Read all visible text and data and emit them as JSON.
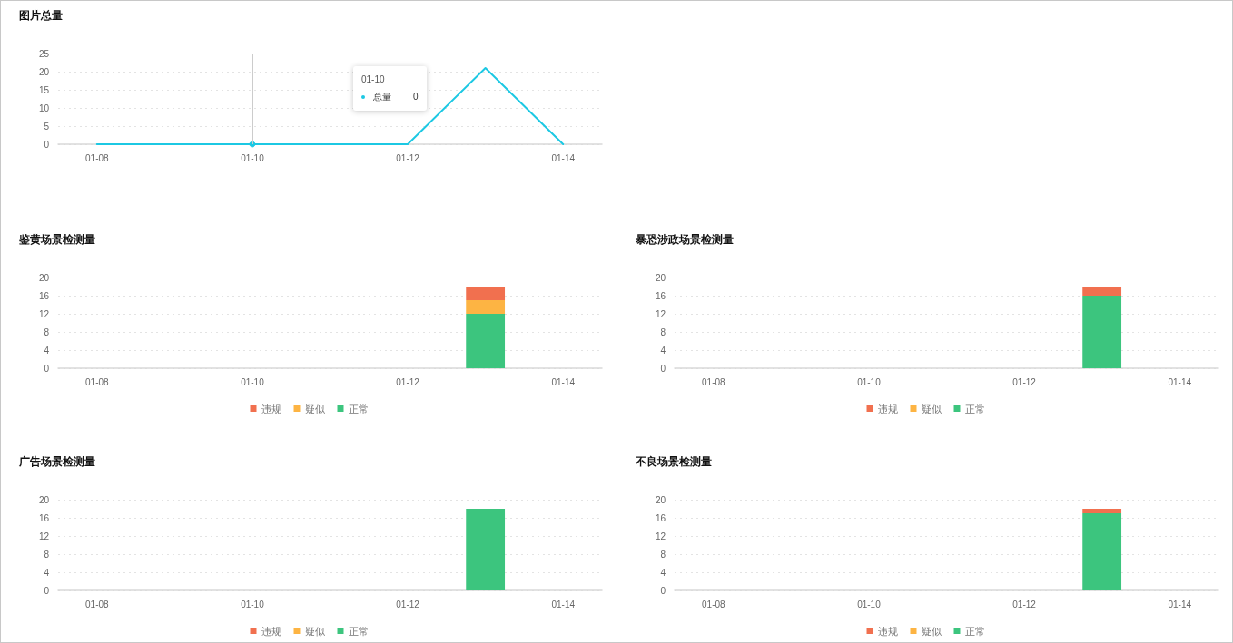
{
  "chart_data": [
    {
      "type": "line",
      "title": "图片总量",
      "categories": [
        "01-08",
        null,
        "01-10",
        null,
        "01-12",
        null,
        "01-14"
      ],
      "series": [
        {
          "name": "总量",
          "color": "#1cc8e3",
          "values": [
            0,
            0,
            0,
            0,
            0,
            21,
            0
          ]
        }
      ],
      "ylim": [
        0,
        25
      ],
      "yticks": [
        0,
        5,
        10,
        15,
        20,
        25
      ],
      "grid": "y",
      "marker": "none",
      "ref_lines": [
        {
          "axis": "x",
          "value": "01-10",
          "color": "#cccccc"
        }
      ],
      "annotations": [
        "01-10",
        "0"
      ]
    },
    {
      "type": "bar",
      "stacked": true,
      "title": "鉴黄场景检测量",
      "categories": [
        "01-08",
        null,
        "01-10",
        null,
        "01-12",
        null,
        "01-14"
      ],
      "series": [
        {
          "name": "正常",
          "color": "#3cc57e",
          "values": [
            0,
            0,
            0,
            0,
            0,
            12,
            0
          ]
        },
        {
          "name": "疑似",
          "color": "#fdb443",
          "values": [
            0,
            0,
            0,
            0,
            0,
            3,
            0
          ]
        },
        {
          "name": "违规",
          "color": "#f1704f",
          "values": [
            0,
            0,
            0,
            0,
            0,
            3,
            0
          ]
        }
      ],
      "ylim": [
        0,
        20
      ],
      "yticks": [
        0,
        4,
        8,
        12,
        16,
        20
      ],
      "grid": "y",
      "legend": "bottom"
    },
    {
      "type": "bar",
      "stacked": true,
      "title": "暴恐涉政场景检测量",
      "categories": [
        "01-08",
        null,
        "01-10",
        null,
        "01-12",
        null,
        "01-14"
      ],
      "series": [
        {
          "name": "正常",
          "color": "#3cc57e",
          "values": [
            0,
            0,
            0,
            0,
            0,
            16,
            0
          ]
        },
        {
          "name": "疑似",
          "color": "#fdb443",
          "values": [
            0,
            0,
            0,
            0,
            0,
            0,
            0
          ]
        },
        {
          "name": "违规",
          "color": "#f1704f",
          "values": [
            0,
            0,
            0,
            0,
            0,
            2,
            0
          ]
        }
      ],
      "ylim": [
        0,
        20
      ],
      "yticks": [
        0,
        4,
        8,
        12,
        16,
        20
      ],
      "grid": "y",
      "legend": "bottom"
    },
    {
      "type": "bar",
      "stacked": true,
      "title": "广告场景检测量",
      "categories": [
        "01-08",
        null,
        "01-10",
        null,
        "01-12",
        null,
        "01-14"
      ],
      "series": [
        {
          "name": "正常",
          "color": "#3cc57e",
          "values": [
            0,
            0,
            0,
            0,
            0,
            18,
            0
          ]
        },
        {
          "name": "疑似",
          "color": "#fdb443",
          "values": [
            0,
            0,
            0,
            0,
            0,
            0,
            0
          ]
        },
        {
          "name": "违规",
          "color": "#f1704f",
          "values": [
            0,
            0,
            0,
            0,
            0,
            0,
            0
          ]
        }
      ],
      "ylim": [
        0,
        20
      ],
      "yticks": [
        0,
        4,
        8,
        12,
        16,
        20
      ],
      "grid": "y",
      "legend": "bottom"
    },
    {
      "type": "bar",
      "stacked": true,
      "title": "不良场景检测量",
      "categories": [
        "01-08",
        null,
        "01-10",
        null,
        "01-12",
        null,
        "01-14"
      ],
      "series": [
        {
          "name": "正常",
          "color": "#3cc57e",
          "values": [
            0,
            0,
            0,
            0,
            0,
            17,
            0
          ]
        },
        {
          "name": "疑似",
          "color": "#fdb443",
          "values": [
            0,
            0,
            0,
            0,
            0,
            0,
            0
          ]
        },
        {
          "name": "违规",
          "color": "#f1704f",
          "values": [
            0,
            0,
            0,
            0,
            0,
            1,
            0
          ]
        }
      ],
      "ylim": [
        0,
        20
      ],
      "yticks": [
        0,
        4,
        8,
        12,
        16,
        20
      ],
      "grid": "y",
      "legend": "bottom"
    }
  ]
}
